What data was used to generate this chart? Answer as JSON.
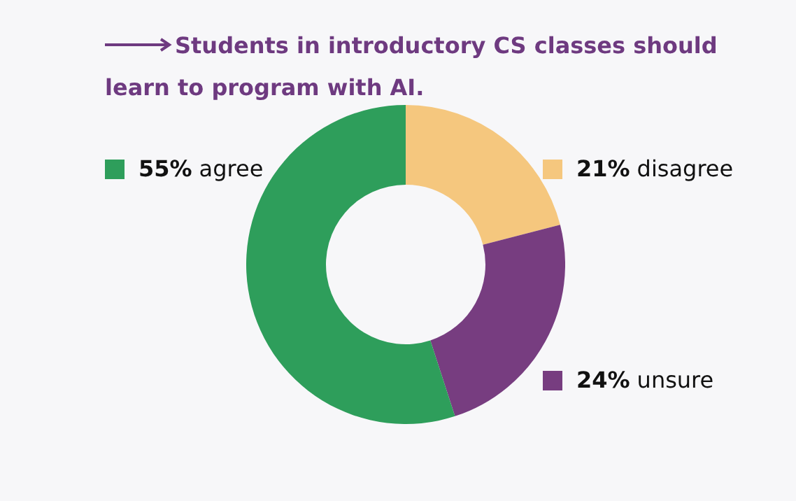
{
  "chart_data": {
    "type": "donut",
    "title": "Students in introductory CS classes should learn to program with AI.",
    "categories": [
      "disagree",
      "unsure",
      "agree"
    ],
    "values": [
      21,
      24,
      55
    ],
    "value_labels": [
      "21%",
      "24%",
      "55%"
    ],
    "colors": [
      "#f5c77e",
      "#773d80",
      "#2e9e5b"
    ]
  }
}
